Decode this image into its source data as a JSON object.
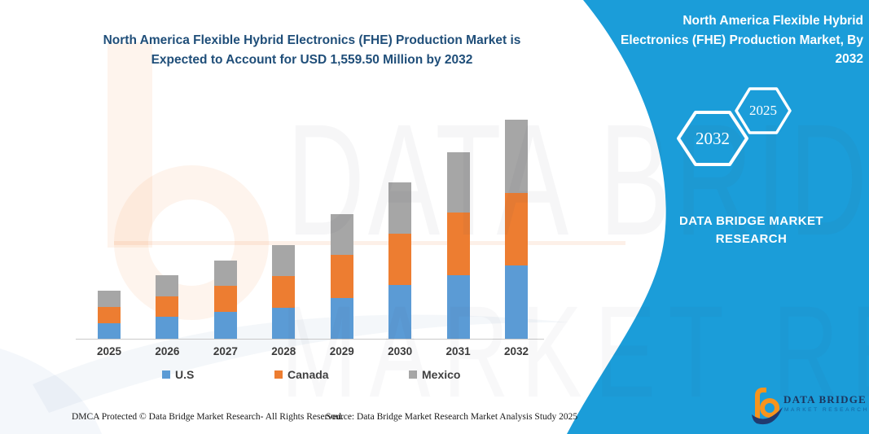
{
  "header": {
    "lines": [
      "North America Flexible Hybrid Electronics (FHE) Production Market is",
      "Expected to Account for USD 1,559.50 Million by 2032"
    ]
  },
  "side_panel": {
    "title_lines": [
      "North America Flexible Hybrid",
      "Electronics (FHE) Production Market, By",
      "2032"
    ],
    "hexagons": [
      "2032",
      "2025"
    ],
    "brand_lines": [
      "DATA BRIDGE MARKET",
      "RESEARCH"
    ],
    "accent_color": "#1B9DD9"
  },
  "watermark": {
    "row1": "DATA BRIDGE",
    "row2": "MARKET RESEARCH"
  },
  "chart_data": {
    "type": "bar",
    "stacked": true,
    "title": "North America Flexible Hybrid Electronics (FHE) Production Market is Expected to Account for USD 1,559.50 Million by 2032",
    "unit": "USD Million",
    "categories": [
      "2025",
      "2026",
      "2027",
      "2028",
      "2029",
      "2030",
      "2031",
      "2032"
    ],
    "series": [
      {
        "name": "U.S",
        "color": "#5B9BD5",
        "values": [
          110,
          156,
          191,
          220,
          290,
          383,
          452,
          522
        ]
      },
      {
        "name": "Canada",
        "color": "#ED7D31",
        "values": [
          116,
          145,
          186,
          226,
          307,
          365,
          446,
          516
        ]
      },
      {
        "name": "Mexico",
        "color": "#A6A6A6",
        "values": [
          116,
          151,
          180,
          220,
          290,
          365,
          429,
          521.5
        ]
      }
    ],
    "totals_estimated": [
      342,
      452,
      557,
      666,
      887,
      1113,
      1327,
      1559.5
    ],
    "highlight_total_2032": 1559.5,
    "values_estimated": true,
    "ylim": [
      0,
      1600
    ],
    "gridlines": false,
    "legend_position": "bottom",
    "legend": [
      "U.S",
      "Canada",
      "Mexico"
    ]
  },
  "footer": {
    "left": "DMCA Protected © Data Bridge Market Research-  All Rights Reserved.",
    "source": "Source: Data Bridge Market Research  Market Analysis Study 2025"
  },
  "logo": {
    "name": "DATA BRIDGE",
    "tagline": "MARKET RESEARCH"
  }
}
